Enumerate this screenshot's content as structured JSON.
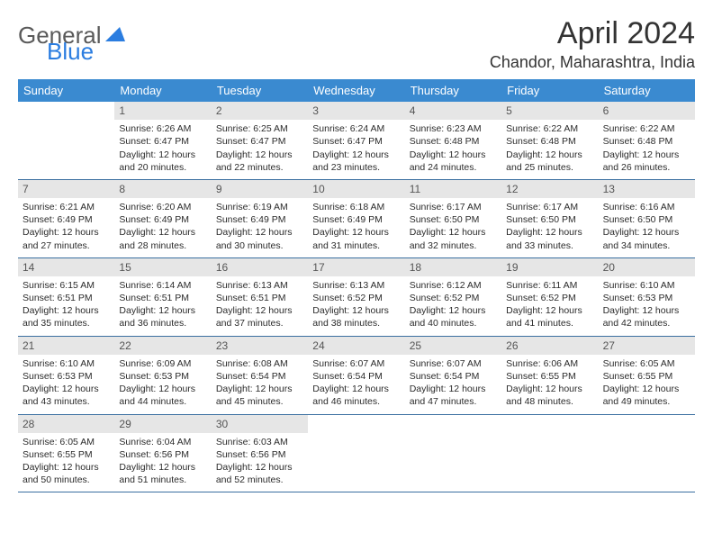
{
  "brand": {
    "part1": "General",
    "part2": "Blue"
  },
  "title": "April 2024",
  "location": "Chandor, Maharashtra, India",
  "colors": {
    "header_bg": "#3a8ad0",
    "header_text": "#ffffff",
    "daynum_bg": "#e6e6e6",
    "daynum_text": "#555555",
    "cell_text": "#2b2b2b",
    "week_border": "#3a6fa0",
    "page_bg": "#ffffff",
    "logo_grey": "#5a5a5a",
    "logo_blue": "#2b7de0"
  },
  "typography": {
    "title_fontsize": 34,
    "location_fontsize": 18,
    "dayheader_fontsize": 13,
    "cell_fontsize": 10.5
  },
  "day_names": [
    "Sunday",
    "Monday",
    "Tuesday",
    "Wednesday",
    "Thursday",
    "Friday",
    "Saturday"
  ],
  "weeks": [
    [
      {
        "n": "",
        "sr": "",
        "ss": "",
        "dl": ""
      },
      {
        "n": "1",
        "sr": "Sunrise: 6:26 AM",
        "ss": "Sunset: 6:47 PM",
        "dl": "Daylight: 12 hours and 20 minutes."
      },
      {
        "n": "2",
        "sr": "Sunrise: 6:25 AM",
        "ss": "Sunset: 6:47 PM",
        "dl": "Daylight: 12 hours and 22 minutes."
      },
      {
        "n": "3",
        "sr": "Sunrise: 6:24 AM",
        "ss": "Sunset: 6:47 PM",
        "dl": "Daylight: 12 hours and 23 minutes."
      },
      {
        "n": "4",
        "sr": "Sunrise: 6:23 AM",
        "ss": "Sunset: 6:48 PM",
        "dl": "Daylight: 12 hours and 24 minutes."
      },
      {
        "n": "5",
        "sr": "Sunrise: 6:22 AM",
        "ss": "Sunset: 6:48 PM",
        "dl": "Daylight: 12 hours and 25 minutes."
      },
      {
        "n": "6",
        "sr": "Sunrise: 6:22 AM",
        "ss": "Sunset: 6:48 PM",
        "dl": "Daylight: 12 hours and 26 minutes."
      }
    ],
    [
      {
        "n": "7",
        "sr": "Sunrise: 6:21 AM",
        "ss": "Sunset: 6:49 PM",
        "dl": "Daylight: 12 hours and 27 minutes."
      },
      {
        "n": "8",
        "sr": "Sunrise: 6:20 AM",
        "ss": "Sunset: 6:49 PM",
        "dl": "Daylight: 12 hours and 28 minutes."
      },
      {
        "n": "9",
        "sr": "Sunrise: 6:19 AM",
        "ss": "Sunset: 6:49 PM",
        "dl": "Daylight: 12 hours and 30 minutes."
      },
      {
        "n": "10",
        "sr": "Sunrise: 6:18 AM",
        "ss": "Sunset: 6:49 PM",
        "dl": "Daylight: 12 hours and 31 minutes."
      },
      {
        "n": "11",
        "sr": "Sunrise: 6:17 AM",
        "ss": "Sunset: 6:50 PM",
        "dl": "Daylight: 12 hours and 32 minutes."
      },
      {
        "n": "12",
        "sr": "Sunrise: 6:17 AM",
        "ss": "Sunset: 6:50 PM",
        "dl": "Daylight: 12 hours and 33 minutes."
      },
      {
        "n": "13",
        "sr": "Sunrise: 6:16 AM",
        "ss": "Sunset: 6:50 PM",
        "dl": "Daylight: 12 hours and 34 minutes."
      }
    ],
    [
      {
        "n": "14",
        "sr": "Sunrise: 6:15 AM",
        "ss": "Sunset: 6:51 PM",
        "dl": "Daylight: 12 hours and 35 minutes."
      },
      {
        "n": "15",
        "sr": "Sunrise: 6:14 AM",
        "ss": "Sunset: 6:51 PM",
        "dl": "Daylight: 12 hours and 36 minutes."
      },
      {
        "n": "16",
        "sr": "Sunrise: 6:13 AM",
        "ss": "Sunset: 6:51 PM",
        "dl": "Daylight: 12 hours and 37 minutes."
      },
      {
        "n": "17",
        "sr": "Sunrise: 6:13 AM",
        "ss": "Sunset: 6:52 PM",
        "dl": "Daylight: 12 hours and 38 minutes."
      },
      {
        "n": "18",
        "sr": "Sunrise: 6:12 AM",
        "ss": "Sunset: 6:52 PM",
        "dl": "Daylight: 12 hours and 40 minutes."
      },
      {
        "n": "19",
        "sr": "Sunrise: 6:11 AM",
        "ss": "Sunset: 6:52 PM",
        "dl": "Daylight: 12 hours and 41 minutes."
      },
      {
        "n": "20",
        "sr": "Sunrise: 6:10 AM",
        "ss": "Sunset: 6:53 PM",
        "dl": "Daylight: 12 hours and 42 minutes."
      }
    ],
    [
      {
        "n": "21",
        "sr": "Sunrise: 6:10 AM",
        "ss": "Sunset: 6:53 PM",
        "dl": "Daylight: 12 hours and 43 minutes."
      },
      {
        "n": "22",
        "sr": "Sunrise: 6:09 AM",
        "ss": "Sunset: 6:53 PM",
        "dl": "Daylight: 12 hours and 44 minutes."
      },
      {
        "n": "23",
        "sr": "Sunrise: 6:08 AM",
        "ss": "Sunset: 6:54 PM",
        "dl": "Daylight: 12 hours and 45 minutes."
      },
      {
        "n": "24",
        "sr": "Sunrise: 6:07 AM",
        "ss": "Sunset: 6:54 PM",
        "dl": "Daylight: 12 hours and 46 minutes."
      },
      {
        "n": "25",
        "sr": "Sunrise: 6:07 AM",
        "ss": "Sunset: 6:54 PM",
        "dl": "Daylight: 12 hours and 47 minutes."
      },
      {
        "n": "26",
        "sr": "Sunrise: 6:06 AM",
        "ss": "Sunset: 6:55 PM",
        "dl": "Daylight: 12 hours and 48 minutes."
      },
      {
        "n": "27",
        "sr": "Sunrise: 6:05 AM",
        "ss": "Sunset: 6:55 PM",
        "dl": "Daylight: 12 hours and 49 minutes."
      }
    ],
    [
      {
        "n": "28",
        "sr": "Sunrise: 6:05 AM",
        "ss": "Sunset: 6:55 PM",
        "dl": "Daylight: 12 hours and 50 minutes."
      },
      {
        "n": "29",
        "sr": "Sunrise: 6:04 AM",
        "ss": "Sunset: 6:56 PM",
        "dl": "Daylight: 12 hours and 51 minutes."
      },
      {
        "n": "30",
        "sr": "Sunrise: 6:03 AM",
        "ss": "Sunset: 6:56 PM",
        "dl": "Daylight: 12 hours and 52 minutes."
      },
      {
        "n": "",
        "sr": "",
        "ss": "",
        "dl": ""
      },
      {
        "n": "",
        "sr": "",
        "ss": "",
        "dl": ""
      },
      {
        "n": "",
        "sr": "",
        "ss": "",
        "dl": ""
      },
      {
        "n": "",
        "sr": "",
        "ss": "",
        "dl": ""
      }
    ]
  ]
}
